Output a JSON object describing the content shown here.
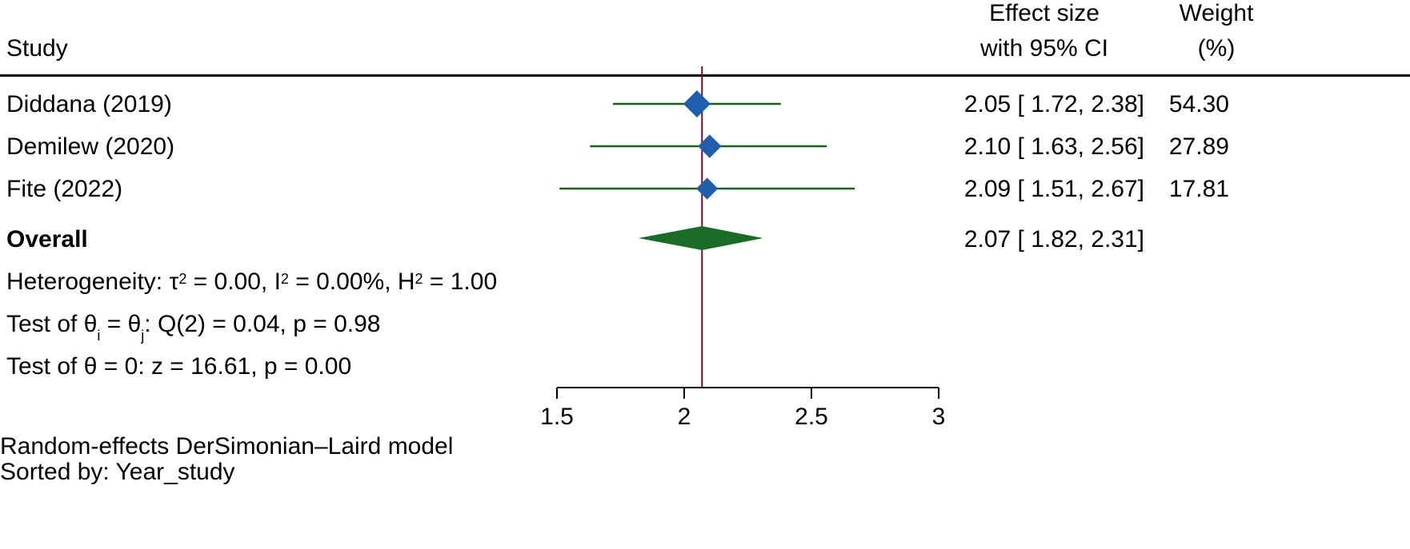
{
  "header": {
    "study": "Study",
    "effect_line1": "Effect size",
    "effect_line2": "with 95% CI",
    "weight_line1": "Weight",
    "weight_line2": "(%)"
  },
  "overall_label": "Overall",
  "overall_ci_text": "2.07 [ 1.82,  2.31]",
  "heterogeneity": {
    "prefix": "Heterogeneity: τ",
    "tau_exp": "2",
    "part2": " = 0.00, I",
    "i_exp": "2",
    "part3": " = 0.00%, H",
    "h_exp": "2",
    "part4": " = 1.00"
  },
  "test_equal": {
    "prefix": "Test of θ",
    "sub_i": "i",
    "mid": " = θ",
    "sub_j": "j",
    "suffix": ": Q(2) = 0.04, p = 0.98"
  },
  "test_zero": "Test of θ = 0: z = 16.61, p = 0.00",
  "footer": {
    "model": "Random-effects DerSimonian–Laird model",
    "sorted": "Sorted by: Year_study"
  },
  "colors": {
    "ci_line": "#1a5e20",
    "study_marker": "#1f5fad",
    "overall_diamond": "#1a6b25",
    "ref_line": "#7a0d2a",
    "axis": "#000000"
  },
  "chart_data": {
    "type": "forest",
    "xlim": [
      1.5,
      3
    ],
    "x_ticks": [
      1.5,
      2,
      2.5,
      3
    ],
    "x_tick_labels": [
      "1.5",
      "2",
      "2.5",
      "3"
    ],
    "reference_line": 2.07,
    "studies": [
      {
        "label": "Diddana (2019)",
        "effect": 2.05,
        "ci_low": 1.72,
        "ci_high": 2.38,
        "weight": 54.3,
        "ci_text": "2.05 [ 1.72,  2.38]",
        "weight_text": "54.30"
      },
      {
        "label": "Demilew (2020)",
        "effect": 2.1,
        "ci_low": 1.63,
        "ci_high": 2.56,
        "weight": 27.89,
        "ci_text": "2.10 [ 1.63,  2.56]",
        "weight_text": "27.89"
      },
      {
        "label": "Fite (2022)",
        "effect": 2.09,
        "ci_low": 1.51,
        "ci_high": 2.67,
        "weight": 17.81,
        "ci_text": "2.09 [ 1.51,  2.67]",
        "weight_text": "17.81"
      }
    ],
    "overall": {
      "effect": 2.07,
      "ci_low": 1.82,
      "ci_high": 2.31
    }
  }
}
